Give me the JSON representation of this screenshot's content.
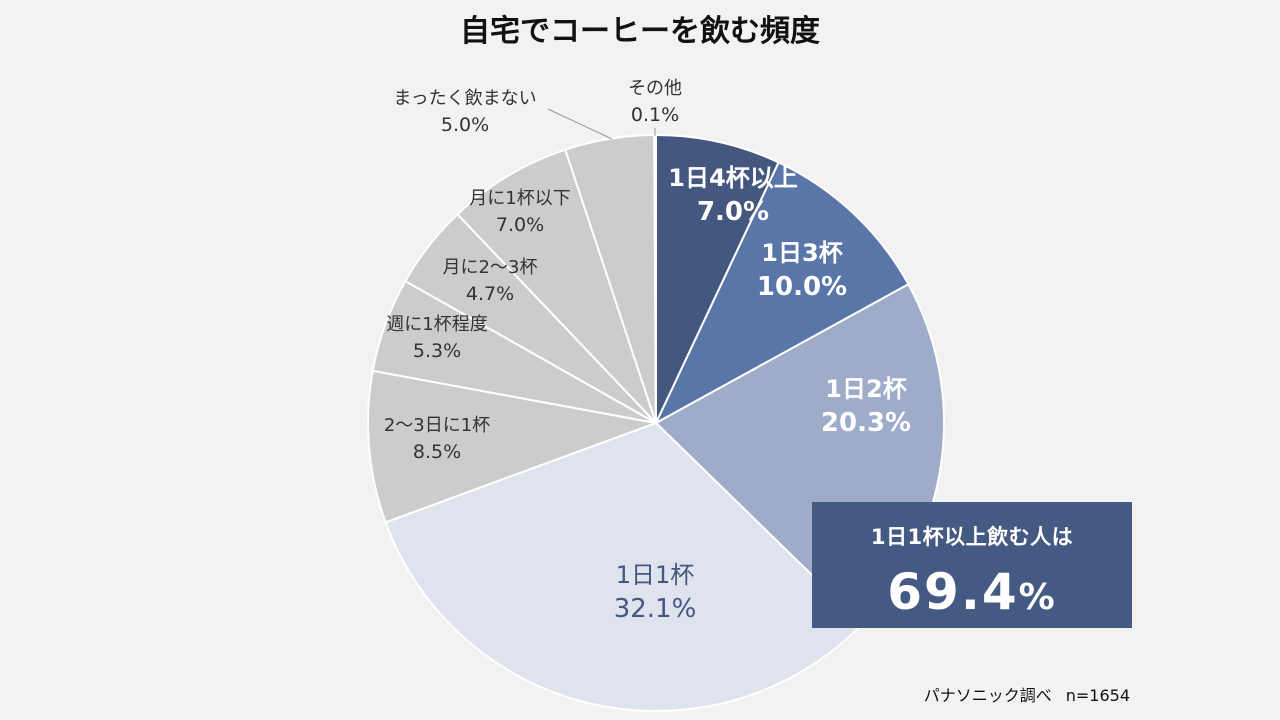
{
  "chart_data": {
    "type": "pie",
    "title": "自宅でコーヒーを飲む頻度",
    "unit": "%",
    "slices": [
      {
        "label": "1日4杯以上",
        "value": 7.0,
        "value_text": "7.0%",
        "color": "#44577f",
        "text_color": "#ffffff",
        "label_style": "bold"
      },
      {
        "label": "1日3杯",
        "value": 10.0,
        "value_text": "10.0%",
        "color": "#5a76a8",
        "text_color": "#ffffff",
        "label_style": "bold"
      },
      {
        "label": "1日2杯",
        "value": 20.3,
        "value_text": "20.3%",
        "color": "#9eacca",
        "text_color": "#ffffff",
        "label_style": "bold"
      },
      {
        "label": "1日1杯",
        "value": 32.1,
        "value_text": "32.1%",
        "color": "#dfe3ee",
        "text_color": "#44577f",
        "label_style": "bold"
      },
      {
        "label": "2～3日に1杯",
        "value": 8.5,
        "value_text": "8.5%",
        "color": "#cccccc",
        "text_color": "#333333",
        "label_style": "normal"
      },
      {
        "label": "週に1杯程度",
        "value": 5.3,
        "value_text": "5.3%",
        "color": "#cccccc",
        "text_color": "#333333",
        "label_style": "normal"
      },
      {
        "label": "月に2～3杯",
        "value": 4.7,
        "value_text": "4.7%",
        "color": "#cccccc",
        "text_color": "#333333",
        "label_style": "normal"
      },
      {
        "label": "月に1杯以下",
        "value": 7.0,
        "value_text": "7.0%",
        "color": "#cccccc",
        "text_color": "#333333",
        "label_style": "normal"
      },
      {
        "label": "まったく飲まない",
        "value": 5.0,
        "value_text": "5.0%",
        "color": "#cccccc",
        "text_color": "#333333",
        "label_style": "outside"
      },
      {
        "label": "その他",
        "value": 0.1,
        "value_text": "0.1%",
        "color": "#cccccc",
        "text_color": "#333333",
        "label_style": "outside"
      }
    ]
  },
  "callout": {
    "label": "1日1杯以上飲む人は",
    "value": "69.4",
    "unit": "%"
  },
  "source": {
    "text": "パナソニック調べ",
    "sample": "n=1654"
  }
}
